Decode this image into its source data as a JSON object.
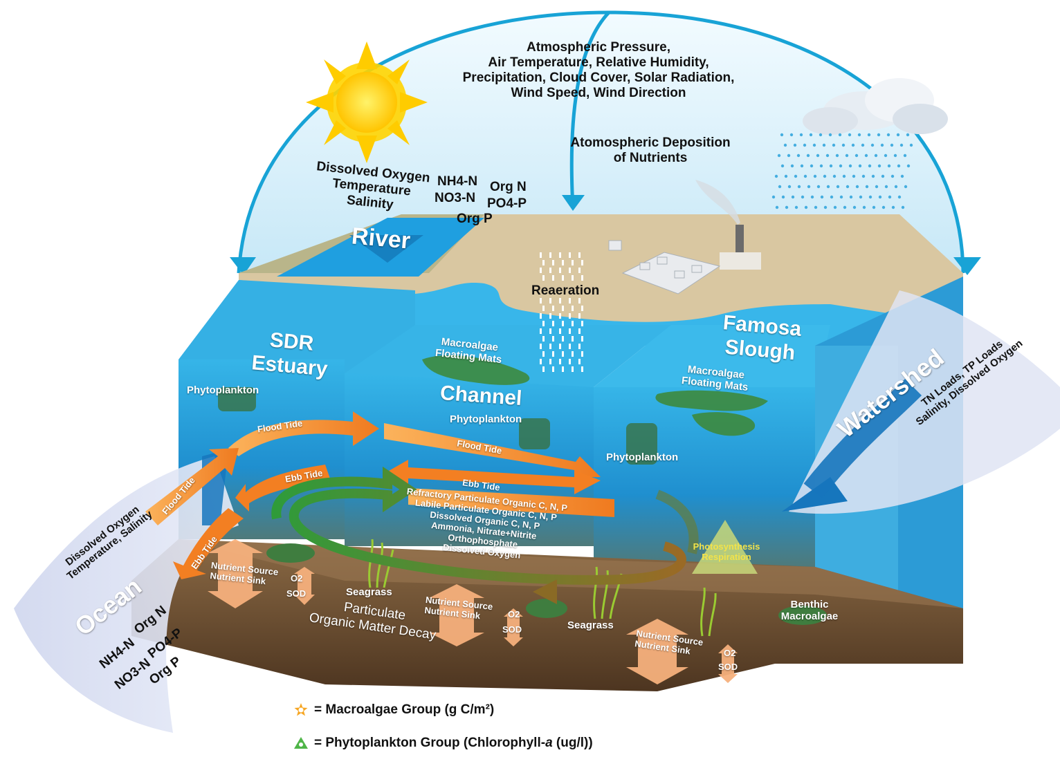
{
  "atmosphere": {
    "line1": "Atmospheric Pressure,",
    "line2": "Air Temperature, Relative Humidity,",
    "line3": "Precipitation, Cloud Cover, Solar Radiation,",
    "line4": "Wind Speed, Wind Direction"
  },
  "deposition": {
    "line1": "Atomospheric Deposition",
    "line2": "of Nutrients"
  },
  "river_inputs": {
    "left1": "Dissolved Oxygen",
    "left2": "Temperature",
    "left3": "Salinity",
    "nh4": "NH4-N",
    "no3": "NO3-N",
    "org_n": "Org N",
    "po4": "PO4-P",
    "org_p": "Org P"
  },
  "regions": {
    "river": "River",
    "reaeration": "Reaeration",
    "sdr_line1": "SDR",
    "sdr_line2": "Estuary",
    "famosa_line1": "Famosa",
    "famosa_line2": "Slough",
    "channel": "Channel",
    "watershed": "Watershed",
    "ocean": "Ocean"
  },
  "watershed_inputs": {
    "line1": "TN Loads, TP Loads",
    "line2": "Salinity, Dissolved Oxygen"
  },
  "ocean_inputs": {
    "line1": "Dissolved Oxygen",
    "line2": "Temperature, Salinity",
    "nh4": "NH4-N",
    "no3": "NO3-N",
    "org_n": "Org N",
    "po4": "PO4-P",
    "org_p": "Org P"
  },
  "biota": {
    "macroalgae_line1": "Macroalgae",
    "macroalgae_line2": "Floating Mats",
    "phytoplankton": "Phytoplankton",
    "seagrass": "Seagrass",
    "benthic_line1": "Benthic",
    "benthic_line2": "Macroalgae"
  },
  "tides": {
    "flood": "Flood Tide",
    "ebb": "Ebb Tide"
  },
  "cycle": {
    "items": [
      "Refractory Particulate Organic C, N, P",
      "Labile Particulate Organic C, N, P",
      "Dissolved Organic C, N, P",
      "Ammonia, Nitrate+Nitrite",
      "Orthophosphate",
      "Dissolved Oxygen"
    ]
  },
  "sediment": {
    "source": "Nutrient Source",
    "sink": "Nutrient Sink",
    "o2": "O2",
    "sod": "SOD",
    "decay_line1": "Particulate",
    "decay_line2": "Organic Matter Decay"
  },
  "photosynthesis": {
    "line1": "Photosynthesis",
    "line2": "Respiration"
  },
  "legend": {
    "macroalgae": "= Macroalgae Group (g C/m²)",
    "phytoplankton_prefix": "= Phytoplankton Group (Chlorophyll-",
    "phytoplankton_italic": "a",
    "phytoplankton_suffix": " (ug/l))"
  },
  "colors": {
    "sky": "#dcf1fb",
    "dome_arc": "#18a3d6",
    "water": "#2fa8dc",
    "water_deep": "#1b7fc0",
    "land": "#ddcba3",
    "sediment": "#7a5a3a",
    "tide_arrow": "#f08a2c",
    "cycle_arrow": "#3f9a3a",
    "sun": "#ffd400",
    "algae": "#3c7a3a"
  }
}
